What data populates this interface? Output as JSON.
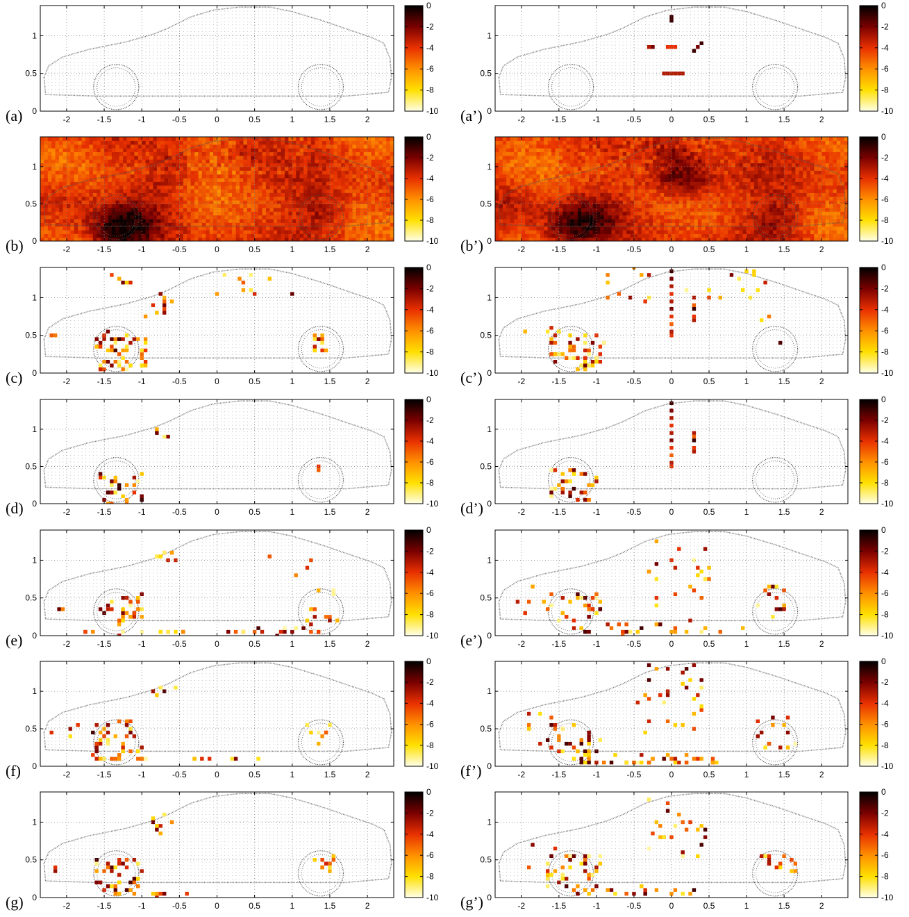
{
  "figure": {
    "colormap": {
      "stops": [
        "#000000",
        "#7a0000",
        "#e83000",
        "#ff9000",
        "#ffe000",
        "#ffffe8"
      ],
      "range": [
        -10,
        0
      ],
      "ticks": [
        "0",
        "-2",
        "-4",
        "-6",
        "-8",
        "-10"
      ]
    },
    "car_outline_color": "#555555",
    "grid_color": "#888888"
  },
  "chart_data": [
    {
      "id": "a",
      "label": "(a)",
      "type": "heatmap",
      "mode": "empty",
      "xlim": [
        -2.35,
        2.35
      ],
      "ylim": [
        0,
        1.4
      ],
      "xticks": [
        "-2",
        "-1.5",
        "-1",
        "-0.5",
        "0",
        "0.5",
        "1",
        "1.5",
        "2"
      ],
      "yticks": [
        "0",
        "0.5",
        "1"
      ],
      "grid": true
    },
    {
      "id": "a2",
      "label": "(a’)",
      "type": "heatmap",
      "mode": "sparse",
      "xlim": [
        -2.35,
        2.35
      ],
      "ylim": [
        0,
        1.4
      ],
      "xticks": [
        "-2",
        "-1.5",
        "-1",
        "-0.5",
        "0",
        "0.5",
        "1",
        "1.5",
        "2"
      ],
      "yticks": [
        "0",
        "0.5",
        "1"
      ],
      "grid": true,
      "points": [
        [
          0,
          1.22,
          -1
        ],
        [
          0,
          1.27,
          -1
        ],
        [
          -0.3,
          0.86,
          -3
        ],
        [
          -0.27,
          0.83,
          -2
        ],
        [
          0.3,
          0.82,
          -1
        ],
        [
          0.34,
          0.87,
          -2
        ],
        [
          0.38,
          0.92,
          -1
        ],
        [
          -0.05,
          0.85,
          -4
        ],
        [
          0,
          0.85,
          -4
        ],
        [
          0.05,
          0.85,
          -4
        ],
        [
          -0.1,
          0.52,
          -3
        ],
        [
          -0.05,
          0.52,
          -3
        ],
        [
          0,
          0.52,
          -3
        ],
        [
          0.05,
          0.52,
          -3
        ],
        [
          0.1,
          0.52,
          -3
        ],
        [
          0.15,
          0.52,
          -3
        ]
      ]
    },
    {
      "id": "b",
      "label": "(b)",
      "type": "heatmap",
      "mode": "dense",
      "seed": 11,
      "xlim": [
        -2.35,
        2.35
      ],
      "ylim": [
        0,
        1.4
      ],
      "xticks": [
        "-2",
        "-1.5",
        "-1",
        "-0.5",
        "0",
        "0.5",
        "1",
        "1.5",
        "2"
      ],
      "yticks": [
        "0",
        "0.5",
        "1"
      ],
      "grid": true,
      "hotspots": [
        [
          -1.35,
          0.15,
          2.5
        ],
        [
          -1.05,
          0.25,
          1.6
        ],
        [
          -0.65,
          0.9,
          1.2
        ],
        [
          1.4,
          0.4,
          1.5
        ],
        [
          0.4,
          1.2,
          0.9
        ],
        [
          -2.0,
          0.6,
          0.8
        ]
      ]
    },
    {
      "id": "b2",
      "label": "(b’)",
      "type": "heatmap",
      "mode": "dense",
      "seed": 23,
      "xlim": [
        -2.35,
        2.35
      ],
      "ylim": [
        0,
        1.4
      ],
      "xticks": [
        "-2",
        "-1.5",
        "-1",
        "-0.5",
        "0",
        "0.5",
        "1",
        "1.5",
        "2"
      ],
      "yticks": [
        "0",
        "0.5",
        "1"
      ],
      "grid": true,
      "hotspots": [
        [
          -1.35,
          0.2,
          2.4
        ],
        [
          -1.0,
          0.35,
          1.5
        ],
        [
          0.0,
          0.9,
          2.0
        ],
        [
          0.3,
          0.85,
          1.8
        ],
        [
          1.4,
          0.3,
          1.6
        ],
        [
          -2.1,
          0.5,
          1.0
        ],
        [
          0,
          1.35,
          1.2
        ]
      ]
    },
    {
      "id": "c",
      "label": "(c)",
      "type": "heatmap",
      "mode": "sparse",
      "xlim": [
        -2.35,
        2.35
      ],
      "ylim": [
        0,
        1.4
      ],
      "xticks": [
        "-2",
        "-1.5",
        "-1",
        "-0.5",
        "0",
        "0.5",
        "1",
        "1.5",
        "2"
      ],
      "yticks": [
        "0",
        "0.5",
        "1"
      ],
      "grid": true,
      "clusters": [
        [
          -1.25,
          0.3,
          0.35,
          0.25,
          55,
          101
        ],
        [
          -0.8,
          0.9,
          0.2,
          0.15,
          10,
          102
        ],
        [
          1.35,
          0.4,
          0.12,
          0.2,
          12,
          103
        ],
        [
          -1.3,
          1.25,
          0.2,
          0.15,
          5,
          104
        ],
        [
          0.5,
          1.2,
          0.6,
          0.2,
          10,
          105
        ],
        [
          -2.1,
          0.45,
          0.1,
          0.1,
          2,
          106
        ]
      ]
    },
    {
      "id": "c2",
      "label": "(c’)",
      "type": "heatmap",
      "mode": "sparse",
      "xlim": [
        -2.35,
        2.35
      ],
      "ylim": [
        0,
        1.4
      ],
      "xticks": [
        "-2",
        "-1.5",
        "-1",
        "-0.5",
        "0",
        "0.5",
        "1",
        "1.5",
        "2"
      ],
      "yticks": [
        "0",
        "0.5",
        "1"
      ],
      "grid": true,
      "clusters": [
        [
          -1.25,
          0.3,
          0.35,
          0.25,
          50,
          201
        ],
        [
          -0.6,
          1.15,
          0.3,
          0.25,
          10,
          202
        ],
        [
          0.6,
          1.2,
          0.6,
          0.2,
          10,
          203
        ],
        [
          -1.8,
          0.45,
          0.3,
          0.15,
          6,
          204
        ],
        [
          1.1,
          1.0,
          0.2,
          0.3,
          5,
          205
        ],
        [
          1.4,
          0.4,
          0.05,
          0.05,
          1,
          206
        ]
      ],
      "points": [
        [
          0,
          1.35,
          -1
        ],
        [
          0,
          1.25,
          -2
        ],
        [
          0,
          1.15,
          -3
        ],
        [
          0,
          1.05,
          -4
        ],
        [
          0,
          0.95,
          -3
        ],
        [
          0,
          0.85,
          -2
        ],
        [
          0,
          0.75,
          -4
        ],
        [
          0,
          0.65,
          -5
        ],
        [
          0,
          0.55,
          -3
        ],
        [
          0,
          0.48,
          -4
        ],
        [
          0.3,
          1.0,
          -3
        ],
        [
          0.3,
          0.9,
          -5
        ],
        [
          0.32,
          0.85,
          -1
        ],
        [
          0.3,
          0.75,
          -4
        ],
        [
          0.3,
          0.68,
          -3
        ]
      ]
    },
    {
      "id": "d",
      "label": "(d)",
      "type": "heatmap",
      "mode": "sparse",
      "xlim": [
        -2.35,
        2.35
      ],
      "ylim": [
        0,
        1.4
      ],
      "xticks": [
        "-2",
        "-1.5",
        "-1",
        "-0.5",
        "0",
        "0.5",
        "1",
        "1.5",
        "2"
      ],
      "yticks": [
        "0",
        "0.5",
        "1"
      ],
      "grid": true,
      "clusters": [
        [
          -1.3,
          0.2,
          0.3,
          0.2,
          25,
          301
        ],
        [
          -0.7,
          0.95,
          0.15,
          0.08,
          4,
          302
        ]
      ],
      "points": [
        [
          1.35,
          0.5,
          -4
        ],
        [
          1.35,
          0.45,
          -5
        ],
        [
          -1.3,
          0.2,
          -1
        ],
        [
          -1.3,
          0.25,
          -1
        ],
        [
          -1.0,
          0.05,
          -1
        ],
        [
          -1.0,
          0.1,
          -2
        ]
      ]
    },
    {
      "id": "d2",
      "label": "(d’)",
      "type": "heatmap",
      "mode": "sparse",
      "xlim": [
        -2.35,
        2.35
      ],
      "ylim": [
        0,
        1.4
      ],
      "xticks": [
        "-2",
        "-1.5",
        "-1",
        "-0.5",
        "0",
        "0.5",
        "1",
        "1.5",
        "2"
      ],
      "yticks": [
        "0",
        "0.5",
        "1"
      ],
      "grid": true,
      "clusters": [
        [
          -1.3,
          0.25,
          0.3,
          0.22,
          32,
          401
        ]
      ],
      "points": [
        [
          0,
          1.35,
          -1
        ],
        [
          0,
          1.25,
          -2
        ],
        [
          0,
          1.15,
          -3
        ],
        [
          0,
          1.05,
          -4
        ],
        [
          0,
          0.95,
          -3
        ],
        [
          0,
          0.85,
          -2
        ],
        [
          0,
          0.75,
          -4
        ],
        [
          0,
          0.65,
          -5
        ],
        [
          0,
          0.55,
          -3
        ],
        [
          0,
          0.48,
          -4
        ],
        [
          0.3,
          0.95,
          -3
        ],
        [
          0.3,
          0.9,
          -5
        ],
        [
          0.32,
          0.85,
          -1
        ],
        [
          0.3,
          0.75,
          -4
        ],
        [
          0.3,
          0.68,
          -3
        ]
      ]
    },
    {
      "id": "e",
      "label": "(e)",
      "type": "heatmap",
      "mode": "sparse",
      "xlim": [
        -2.35,
        2.35
      ],
      "ylim": [
        0,
        1.4
      ],
      "xticks": [
        "-2",
        "-1.5",
        "-1",
        "-0.5",
        "0",
        "0.5",
        "1",
        "1.5",
        "2"
      ],
      "yticks": [
        "0",
        "0.5",
        "1"
      ],
      "grid": true,
      "clusters": [
        [
          -1.3,
          0.35,
          0.35,
          0.2,
          30,
          501
        ],
        [
          1.4,
          0.4,
          0.2,
          0.25,
          12,
          502
        ],
        [
          -0.7,
          1.0,
          0.15,
          0.1,
          8,
          503
        ],
        [
          -0.2,
          0.05,
          1.6,
          0.04,
          30,
          504
        ],
        [
          0.9,
          1.0,
          0.4,
          0.2,
          4,
          505
        ],
        [
          -2.1,
          0.45,
          0.1,
          0.1,
          2,
          506
        ]
      ]
    },
    {
      "id": "e2",
      "label": "(e’)",
      "type": "heatmap",
      "mode": "sparse",
      "xlim": [
        -2.35,
        2.35
      ],
      "ylim": [
        0,
        1.4
      ],
      "xticks": [
        "-2",
        "-1.5",
        "-1",
        "-0.5",
        "0",
        "0.5",
        "1",
        "1.5",
        "2"
      ],
      "yticks": [
        "0",
        "0.5",
        "1"
      ],
      "grid": true,
      "clusters": [
        [
          -1.3,
          0.35,
          0.35,
          0.2,
          28,
          601
        ],
        [
          1.35,
          0.4,
          0.2,
          0.25,
          14,
          602
        ],
        [
          0.1,
          0.8,
          0.4,
          0.45,
          22,
          603
        ],
        [
          -0.2,
          0.1,
          1.2,
          0.08,
          25,
          604
        ],
        [
          -1.8,
          0.5,
          0.3,
          0.2,
          8,
          605
        ]
      ]
    },
    {
      "id": "f",
      "label": "(f)",
      "type": "heatmap",
      "mode": "sparse",
      "xlim": [
        -2.35,
        2.35
      ],
      "ylim": [
        0,
        1.4
      ],
      "xticks": [
        "-2",
        "-1.5",
        "-1",
        "-0.5",
        "0",
        "0.5",
        "1",
        "1.5",
        "2"
      ],
      "yticks": [
        "0",
        "0.5",
        "1"
      ],
      "grid": true,
      "clusters": [
        [
          -1.3,
          0.35,
          0.35,
          0.25,
          40,
          701
        ],
        [
          1.35,
          0.45,
          0.15,
          0.15,
          8,
          702
        ],
        [
          -0.7,
          1.0,
          0.15,
          0.1,
          6,
          703
        ],
        [
          -0.4,
          0.1,
          1.0,
          0.03,
          14,
          704
        ],
        [
          -2.0,
          0.5,
          0.2,
          0.2,
          4,
          705
        ]
      ]
    },
    {
      "id": "f2",
      "label": "(f’)",
      "type": "heatmap",
      "mode": "sparse",
      "xlim": [
        -2.35,
        2.35
      ],
      "ylim": [
        0,
        1.4
      ],
      "xticks": [
        "-2",
        "-1.5",
        "-1",
        "-0.5",
        "0",
        "0.5",
        "1",
        "1.5",
        "2"
      ],
      "yticks": [
        "0",
        "0.5",
        "1"
      ],
      "grid": true,
      "clusters": [
        [
          -1.3,
          0.35,
          0.35,
          0.25,
          30,
          801
        ],
        [
          1.4,
          0.45,
          0.25,
          0.2,
          14,
          802
        ],
        [
          0.0,
          0.9,
          0.45,
          0.45,
          30,
          803
        ],
        [
          -0.3,
          0.08,
          0.9,
          0.05,
          40,
          804
        ],
        [
          -1.8,
          0.5,
          0.3,
          0.2,
          8,
          805
        ]
      ]
    },
    {
      "id": "g",
      "label": "(g)",
      "type": "heatmap",
      "mode": "sparse",
      "xlim": [
        -2.35,
        2.35
      ],
      "ylim": [
        0,
        1.4
      ],
      "xticks": [
        "-2",
        "-1.5",
        "-1",
        "-0.5",
        "0",
        "0.5",
        "1",
        "1.5",
        "2"
      ],
      "yticks": [
        "0",
        "0.5",
        "1"
      ],
      "grid": true,
      "clusters": [
        [
          -1.3,
          0.3,
          0.3,
          0.25,
          40,
          901
        ],
        [
          1.45,
          0.45,
          0.15,
          0.1,
          12,
          902
        ],
        [
          -0.7,
          1.0,
          0.2,
          0.15,
          8,
          903
        ],
        [
          -0.6,
          0.05,
          0.4,
          0.04,
          6,
          904
        ],
        [
          -2.1,
          0.4,
          0.1,
          0.1,
          2,
          905
        ]
      ]
    },
    {
      "id": "g2",
      "label": "(g’)",
      "type": "heatmap",
      "mode": "sparse",
      "xlim": [
        -2.35,
        2.35
      ],
      "ylim": [
        0,
        1.4
      ],
      "xticks": [
        "-2",
        "-1.5",
        "-1",
        "-0.5",
        "0",
        "0.5",
        "1",
        "1.5",
        "2"
      ],
      "yticks": [
        "0",
        "0.5",
        "1"
      ],
      "grid": true,
      "clusters": [
        [
          -1.3,
          0.35,
          0.35,
          0.25,
          34,
          1001
        ],
        [
          1.4,
          0.45,
          0.25,
          0.15,
          14,
          1002
        ],
        [
          0.1,
          0.9,
          0.45,
          0.4,
          24,
          1003
        ],
        [
          -0.5,
          0.08,
          0.8,
          0.05,
          22,
          1004
        ],
        [
          -1.8,
          0.5,
          0.3,
          0.2,
          6,
          1005
        ]
      ]
    }
  ]
}
